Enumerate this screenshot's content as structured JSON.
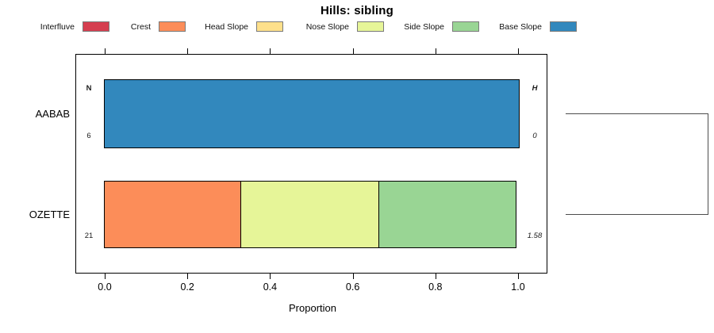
{
  "title": "Hills: sibling",
  "legend": {
    "items": [
      {
        "label": "Interfluve",
        "color": "#d53e4f"
      },
      {
        "label": "Crest",
        "color": "#fc8d59"
      },
      {
        "label": "Head Slope",
        "color": "#fee08b"
      },
      {
        "label": "Nose Slope",
        "color": "#e6f598"
      },
      {
        "label": "Side Slope",
        "color": "#99d594"
      },
      {
        "label": "Base Slope",
        "color": "#3288bd"
      }
    ]
  },
  "chart_data": {
    "type": "bar",
    "orientation": "horizontal",
    "stacked": true,
    "title": "Hills: sibling",
    "xlabel": "Proportion",
    "xlim": [
      0,
      1
    ],
    "xticks": [
      "0.0",
      "0.2",
      "0.4",
      "0.6",
      "0.8",
      "1.0"
    ],
    "xtick_values": [
      0,
      0.2,
      0.4,
      0.6,
      0.8,
      1.0
    ],
    "grid": false,
    "legend_position": "top",
    "count_header": "N",
    "entropy_header": "H",
    "categories": [
      "AABAB",
      "OZETTE"
    ],
    "rows": [
      {
        "category": "AABAB",
        "n": "6",
        "h": "0",
        "segments": [
          {
            "name": "Base Slope",
            "value": 1.0,
            "color": "#3288bd"
          }
        ]
      },
      {
        "category": "OZETTE",
        "n": "21",
        "h": "1.58",
        "segments": [
          {
            "name": "Crest",
            "value": 0.333,
            "color": "#fc8d59"
          },
          {
            "name": "Nose Slope",
            "value": 0.334,
            "color": "#e6f598"
          },
          {
            "name": "Side Slope",
            "value": 0.333,
            "color": "#99d594"
          }
        ]
      }
    ],
    "dendrogram": "right-side bracket joining AABAB and OZETTE"
  },
  "colors": {
    "bar_border": "#000000",
    "frame_border": "#000000",
    "legend_swatch_border": "#7a7a7a",
    "dendrogram_line": "#4d4d4d"
  }
}
